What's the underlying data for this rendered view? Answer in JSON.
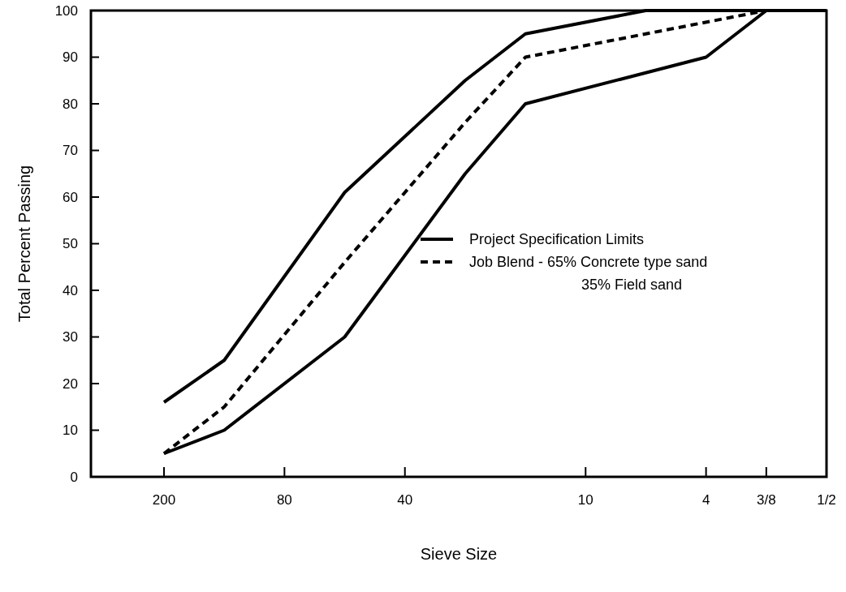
{
  "chart_data": {
    "type": "line",
    "xlabel": "Sieve Size",
    "ylabel": "Total Percent Passing",
    "categories": [
      "200",
      null,
      "80",
      null,
      "40",
      null,
      null,
      "10",
      null,
      "4",
      "3/8",
      "1/2"
    ],
    "ylim": [
      0,
      100
    ],
    "yticks": [
      0,
      10,
      20,
      30,
      40,
      50,
      60,
      70,
      80,
      90,
      100
    ],
    "grid": false,
    "legend": "right",
    "marker": "none",
    "series": [
      {
        "name": "Project Specification Limits",
        "color": "#000000",
        "line_style": "solid",
        "values": [
          16,
          25,
          null,
          61,
          null,
          85,
          95,
          null,
          100,
          null,
          100,
          null
        ]
      },
      {
        "color": "#000000",
        "line_style": "solid",
        "values": [
          5,
          10,
          null,
          30,
          null,
          65,
          80,
          null,
          null,
          90,
          100,
          100
        ]
      },
      {
        "name": "Job Blend - 65% Concrete type sand\n35% Field sand",
        "color": "#000000",
        "line_style": "dashed",
        "values": [
          5,
          15,
          null,
          46,
          null,
          76,
          90,
          null,
          null,
          null,
          100,
          null
        ]
      }
    ]
  }
}
